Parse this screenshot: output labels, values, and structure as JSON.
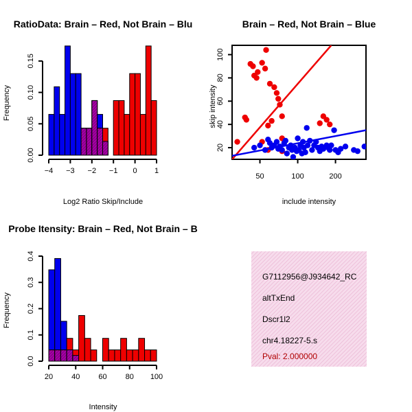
{
  "chart_data": [
    {
      "type": "histogram",
      "title": "RatioData: Brain – Red, Not Brain – Blu",
      "xlabel": "Log2 Ratio Skip/Include",
      "ylabel": "Frequency",
      "xticks": [
        "−4",
        "−3",
        "−2",
        "−1",
        "0",
        "1"
      ],
      "yticks": [
        "0.00",
        "0.05",
        "0.10",
        "0.15"
      ],
      "xlim": [
        -4,
        1
      ],
      "ylim": [
        0,
        0.175
      ],
      "bin_starts": [
        -4.0,
        -3.75,
        -3.5,
        -3.25,
        -3.0,
        -2.75,
        -2.5,
        -2.25,
        -2.0,
        -1.75,
        -1.5,
        -1.25,
        -1.0,
        -0.75,
        -0.5,
        -0.25,
        0.0,
        0.25,
        0.5,
        0.75
      ],
      "bin_width": 0.25,
      "series": [
        {
          "name": "Not Brain",
          "color": "#0000ee",
          "values": [
            0.065,
            0.109,
            0.065,
            0.174,
            0.13,
            0.13,
            0.043,
            0.043,
            0.087,
            0.065,
            0.022,
            0,
            0,
            0,
            0,
            0,
            0,
            0,
            0,
            0
          ]
        },
        {
          "name": "Brain",
          "color": "#ee0000",
          "values": [
            0,
            0,
            0,
            0,
            0,
            0,
            0.043,
            0.043,
            0.087,
            0.043,
            0.043,
            0,
            0.087,
            0.087,
            0.065,
            0.13,
            0.13,
            0.065,
            0.174,
            0.087
          ]
        }
      ]
    },
    {
      "type": "scatter",
      "title": "Brain – Red, Not Brain – Blue",
      "xlabel": "include intensity",
      "ylabel": "skip intensity",
      "xticks": [
        "50",
        "100",
        "200"
      ],
      "xtick_values": [
        50,
        100,
        200
      ],
      "yticks": [
        "20",
        "40",
        "60",
        "80",
        "100"
      ],
      "ytick_values": [
        20,
        40,
        60,
        80,
        100
      ],
      "xscale": "log",
      "xlim": [
        30,
        350
      ],
      "ylim": [
        10,
        108
      ],
      "series": [
        {
          "name": "Brain",
          "color": "#ee0000",
          "points": [
            [
              33,
              25
            ],
            [
              38,
              46
            ],
            [
              39,
              44
            ],
            [
              42,
              92
            ],
            [
              44,
              90
            ],
            [
              45,
              82
            ],
            [
              47,
              80
            ],
            [
              48,
              85
            ],
            [
              52,
              93
            ],
            [
              52,
              25
            ],
            [
              55,
              88
            ],
            [
              56,
              104
            ],
            [
              58,
              39
            ],
            [
              58,
              18
            ],
            [
              60,
              75
            ],
            [
              62,
              43
            ],
            [
              65,
              72
            ],
            [
              68,
              67
            ],
            [
              70,
              62
            ],
            [
              72,
              57
            ],
            [
              75,
              47
            ],
            [
              75,
              28
            ],
            [
              75,
              17
            ],
            [
              150,
              41
            ],
            [
              160,
              47
            ],
            [
              170,
              44
            ],
            [
              180,
              40
            ]
          ],
          "fit": [
            [
              30,
              10
            ],
            [
              185,
              108
            ]
          ]
        },
        {
          "name": "Not Brain",
          "color": "#0000ee",
          "points": [
            [
              45,
              20
            ],
            [
              50,
              22
            ],
            [
              55,
              18
            ],
            [
              58,
              27
            ],
            [
              60,
              24
            ],
            [
              62,
              20
            ],
            [
              65,
              22
            ],
            [
              68,
              25
            ],
            [
              70,
              19
            ],
            [
              72,
              21
            ],
            [
              75,
              18
            ],
            [
              78,
              24
            ],
            [
              80,
              26
            ],
            [
              82,
              15
            ],
            [
              85,
              20
            ],
            [
              88,
              22
            ],
            [
              90,
              18
            ],
            [
              92,
              12
            ],
            [
              95,
              20
            ],
            [
              98,
              17
            ],
            [
              100,
              28
            ],
            [
              102,
              18
            ],
            [
              105,
              22
            ],
            [
              108,
              15
            ],
            [
              110,
              25
            ],
            [
              112,
              20
            ],
            [
              115,
              16
            ],
            [
              118,
              37
            ],
            [
              120,
              22
            ],
            [
              125,
              26
            ],
            [
              130,
              18
            ],
            [
              135,
              22
            ],
            [
              140,
              25
            ],
            [
              145,
              20
            ],
            [
              150,
              17
            ],
            [
              155,
              21
            ],
            [
              160,
              19
            ],
            [
              170,
              22
            ],
            [
              175,
              20
            ],
            [
              180,
              18
            ],
            [
              185,
              22
            ],
            [
              195,
              35
            ],
            [
              200,
              18
            ],
            [
              210,
              16
            ],
            [
              220,
              19
            ],
            [
              240,
              21
            ],
            [
              280,
              18
            ],
            [
              300,
              17
            ],
            [
              340,
              21
            ]
          ],
          "fit": [
            [
              30,
              13
            ],
            [
              350,
              35
            ]
          ]
        }
      ]
    },
    {
      "type": "histogram",
      "title": "Probe Itensity: Brain – Red, Not Brain – B",
      "xlabel": "Intensity",
      "ylabel": "Frequency",
      "xticks": [
        "20",
        "40",
        "60",
        "80",
        "100"
      ],
      "yticks": [
        "0.0",
        "0.1",
        "0.2",
        "0.3",
        "0.4"
      ],
      "xlim": [
        15,
        105
      ],
      "ylim": [
        0,
        0.4
      ],
      "bin_starts": [
        15,
        20,
        25,
        30,
        35,
        40,
        45,
        50,
        55,
        60,
        65,
        70,
        75,
        80,
        85,
        90,
        95,
        100
      ],
      "bin_width": 5,
      "series": [
        {
          "name": "Not Brain",
          "color": "#0000ee",
          "values": [
            0.348,
            0.391,
            0.152,
            0.043,
            0.022,
            0,
            0,
            0,
            0,
            0,
            0,
            0,
            0,
            0,
            0,
            0,
            0,
            0
          ]
        },
        {
          "name": "Brain",
          "color": "#ee0000",
          "values": [
            0.043,
            0.043,
            0.043,
            0.087,
            0.043,
            0.174,
            0.087,
            0.043,
            0,
            0.087,
            0.043,
            0.043,
            0.087,
            0.043,
            0.043,
            0.087,
            0.043,
            0.043
          ]
        }
      ]
    }
  ],
  "info_panel": {
    "id": "G7112956@J934642_RC",
    "event": "altTxEnd",
    "gene": "Dscr1l2",
    "location": "chr4.18227-5.s",
    "pval": "Pval: 2.000000"
  },
  "colors": {
    "brain": "#ee0000",
    "not_brain": "#0000ee",
    "overlap": "#a000a0",
    "panel_bg": "#f5d8ea"
  }
}
